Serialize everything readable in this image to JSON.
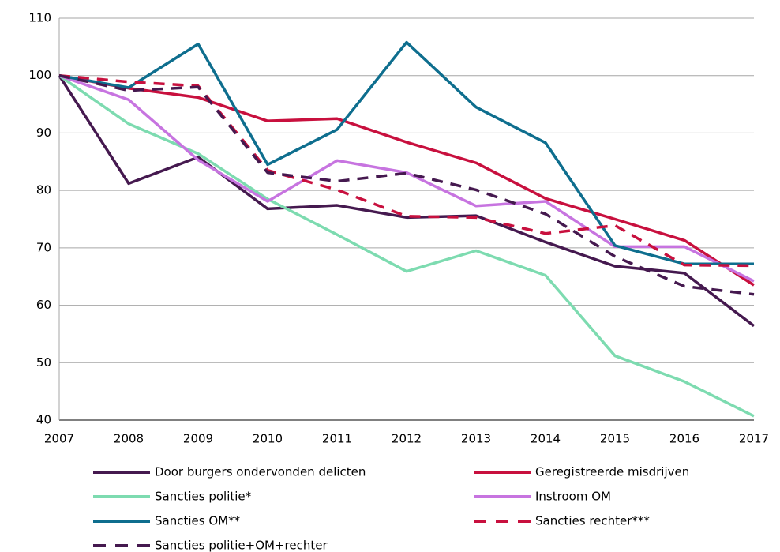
{
  "chart_data": {
    "type": "line",
    "categories": [
      "2007",
      "2008",
      "2009",
      "2010",
      "2011",
      "2012",
      "2013",
      "2014",
      "2015",
      "2016",
      "2017"
    ],
    "series": [
      {
        "name": "Door burgers ondervonden delicten",
        "color": "#45194f",
        "style": "solid",
        "values": [
          100,
          81.2,
          85.8,
          76.8,
          77.4,
          75.3,
          75.6,
          71,
          66.8,
          65.6,
          56.4
        ]
      },
      {
        "name": "Geregistreerde misdrijven",
        "color": "#c8103e",
        "style": "solid",
        "values": [
          100,
          97.8,
          96.2,
          92.1,
          92.5,
          88.4,
          84.8,
          78.6,
          75,
          71.3,
          63.5
        ]
      },
      {
        "name": "Sancties politie*",
        "color": "#7ddbb0",
        "style": "solid",
        "values": [
          100,
          91.6,
          86.4,
          78.5,
          72.3,
          65.9,
          69.5,
          65.2,
          51.2,
          46.7,
          40.7
        ]
      },
      {
        "name": "Instroom OM",
        "color": "#c774e0",
        "style": "solid",
        "values": [
          100,
          95.8,
          85.3,
          78.1,
          85.2,
          83.1,
          77.3,
          78.1,
          70.2,
          70.2,
          64.2
        ]
      },
      {
        "name": "Sancties OM**",
        "color": "#0e6e8e",
        "style": "solid",
        "values": [
          100,
          97.9,
          105.5,
          84.5,
          90.6,
          105.8,
          94.5,
          88.3,
          70.4,
          67.2,
          67.2
        ]
      },
      {
        "name": "Sancties rechter***",
        "color": "#c8103e",
        "style": "dashed",
        "values": [
          100,
          98.9,
          98.2,
          83.5,
          80.1,
          75.5,
          75.3,
          72.5,
          73.9,
          67,
          66.9
        ]
      },
      {
        "name": "Sancties politie+OM+rechter",
        "color": "#45194f",
        "style": "dashed",
        "values": [
          100,
          97.4,
          98,
          83.1,
          81.6,
          83,
          80.1,
          75.9,
          68.5,
          63.3,
          61.9
        ]
      }
    ],
    "ylim": [
      40,
      110
    ],
    "yticks": [
      40,
      50,
      60,
      70,
      80,
      90,
      100,
      110
    ],
    "grid": true
  }
}
